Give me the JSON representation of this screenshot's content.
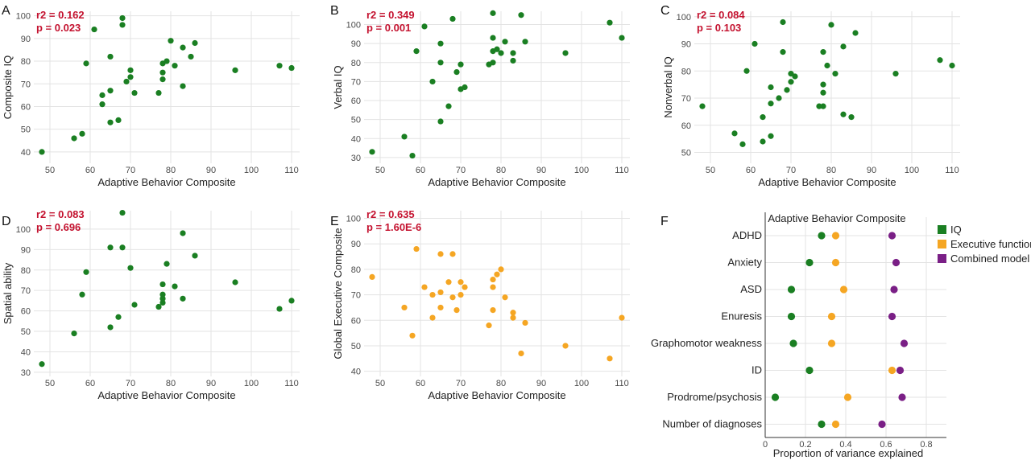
{
  "colors": {
    "green": "#1a7f22",
    "orange": "#f5a623",
    "purple": "#7a1f86",
    "stat_red": "#c4122f"
  },
  "chart_data": [
    {
      "id": "A",
      "type": "scatter",
      "panel_label": "A",
      "xlabel": "Adaptive Behavior Composite",
      "ylabel": "Composite IQ",
      "stat_r2": "r2 = 0.162",
      "stat_p": "p = 0.023",
      "xlim": [
        46,
        112
      ],
      "ylim": [
        35,
        102
      ],
      "xticks": [
        50,
        60,
        70,
        80,
        90,
        100,
        110
      ],
      "yticks": [
        40,
        50,
        60,
        70,
        80,
        90,
        100
      ],
      "color": "#1a7f22",
      "grid": true,
      "points": [
        {
          "x": 48,
          "y": 40
        },
        {
          "x": 56,
          "y": 46
        },
        {
          "x": 58,
          "y": 48
        },
        {
          "x": 59,
          "y": 79
        },
        {
          "x": 61,
          "y": 94
        },
        {
          "x": 63,
          "y": 65
        },
        {
          "x": 63,
          "y": 61
        },
        {
          "x": 65,
          "y": 82
        },
        {
          "x": 65,
          "y": 67
        },
        {
          "x": 65,
          "y": 53
        },
        {
          "x": 67,
          "y": 54
        },
        {
          "x": 68,
          "y": 99
        },
        {
          "x": 68,
          "y": 96
        },
        {
          "x": 69,
          "y": 71
        },
        {
          "x": 70,
          "y": 76
        },
        {
          "x": 70,
          "y": 73
        },
        {
          "x": 71,
          "y": 66
        },
        {
          "x": 77,
          "y": 66
        },
        {
          "x": 78,
          "y": 79
        },
        {
          "x": 78,
          "y": 75
        },
        {
          "x": 78,
          "y": 72
        },
        {
          "x": 79,
          "y": 80
        },
        {
          "x": 80,
          "y": 89
        },
        {
          "x": 81,
          "y": 78
        },
        {
          "x": 83,
          "y": 86
        },
        {
          "x": 83,
          "y": 69
        },
        {
          "x": 85,
          "y": 82
        },
        {
          "x": 86,
          "y": 88
        },
        {
          "x": 96,
          "y": 76
        },
        {
          "x": 107,
          "y": 78
        },
        {
          "x": 110,
          "y": 77
        }
      ]
    },
    {
      "id": "B",
      "type": "scatter",
      "panel_label": "B",
      "xlabel": "Adaptive Behavior Composite",
      "ylabel": "Verbal IQ",
      "stat_r2": "r2 = 0.349",
      "stat_p": "p = 0.001",
      "xlim": [
        46,
        112
      ],
      "ylim": [
        27,
        107
      ],
      "xticks": [
        50,
        60,
        70,
        80,
        90,
        100,
        110
      ],
      "yticks": [
        30,
        40,
        50,
        60,
        70,
        80,
        90,
        100
      ],
      "color": "#1a7f22",
      "grid": true,
      "points": [
        {
          "x": 48,
          "y": 33
        },
        {
          "x": 56,
          "y": 41
        },
        {
          "x": 58,
          "y": 31
        },
        {
          "x": 59,
          "y": 86
        },
        {
          "x": 61,
          "y": 99
        },
        {
          "x": 63,
          "y": 70
        },
        {
          "x": 65,
          "y": 90
        },
        {
          "x": 65,
          "y": 80
        },
        {
          "x": 65,
          "y": 49
        },
        {
          "x": 67,
          "y": 57
        },
        {
          "x": 68,
          "y": 103
        },
        {
          "x": 69,
          "y": 75
        },
        {
          "x": 70,
          "y": 79
        },
        {
          "x": 70,
          "y": 66
        },
        {
          "x": 71,
          "y": 67
        },
        {
          "x": 77,
          "y": 79
        },
        {
          "x": 78,
          "y": 106
        },
        {
          "x": 78,
          "y": 93
        },
        {
          "x": 78,
          "y": 86
        },
        {
          "x": 78,
          "y": 80
        },
        {
          "x": 79,
          "y": 87
        },
        {
          "x": 80,
          "y": 85
        },
        {
          "x": 81,
          "y": 91
        },
        {
          "x": 83,
          "y": 85
        },
        {
          "x": 83,
          "y": 81
        },
        {
          "x": 85,
          "y": 105
        },
        {
          "x": 86,
          "y": 91
        },
        {
          "x": 96,
          "y": 85
        },
        {
          "x": 107,
          "y": 101
        },
        {
          "x": 110,
          "y": 93
        }
      ]
    },
    {
      "id": "C",
      "type": "scatter",
      "panel_label": "C",
      "xlabel": "Adaptive Behavior Composite",
      "ylabel": "Nonverbal IQ",
      "stat_r2": "r2 = 0.084",
      "stat_p": "p = 0.103",
      "xlim": [
        46,
        112
      ],
      "ylim": [
        46,
        102
      ],
      "xticks": [
        50,
        60,
        70,
        80,
        90,
        100,
        110
      ],
      "yticks": [
        50,
        60,
        70,
        80,
        90,
        100
      ],
      "color": "#1a7f22",
      "grid": true,
      "points": [
        {
          "x": 48,
          "y": 67
        },
        {
          "x": 56,
          "y": 57
        },
        {
          "x": 58,
          "y": 53
        },
        {
          "x": 59,
          "y": 80
        },
        {
          "x": 61,
          "y": 90
        },
        {
          "x": 63,
          "y": 63
        },
        {
          "x": 63,
          "y": 54
        },
        {
          "x": 65,
          "y": 74
        },
        {
          "x": 65,
          "y": 68
        },
        {
          "x": 65,
          "y": 56
        },
        {
          "x": 67,
          "y": 70
        },
        {
          "x": 68,
          "y": 98
        },
        {
          "x": 68,
          "y": 87
        },
        {
          "x": 69,
          "y": 73
        },
        {
          "x": 70,
          "y": 79
        },
        {
          "x": 70,
          "y": 76
        },
        {
          "x": 71,
          "y": 78
        },
        {
          "x": 77,
          "y": 67
        },
        {
          "x": 78,
          "y": 87
        },
        {
          "x": 78,
          "y": 75
        },
        {
          "x": 78,
          "y": 72
        },
        {
          "x": 78,
          "y": 67
        },
        {
          "x": 79,
          "y": 82
        },
        {
          "x": 80,
          "y": 97
        },
        {
          "x": 81,
          "y": 79
        },
        {
          "x": 83,
          "y": 89
        },
        {
          "x": 83,
          "y": 64
        },
        {
          "x": 85,
          "y": 63
        },
        {
          "x": 86,
          "y": 94
        },
        {
          "x": 96,
          "y": 79
        },
        {
          "x": 107,
          "y": 84
        },
        {
          "x": 110,
          "y": 82
        }
      ]
    },
    {
      "id": "D",
      "type": "scatter",
      "panel_label": "D",
      "xlabel": "Adaptive Behavior Composite",
      "ylabel": "Spatial ability",
      "stat_r2": "r2 = 0.083",
      "stat_p": "p = 0.696",
      "xlim": [
        46,
        112
      ],
      "ylim": [
        28,
        109
      ],
      "xticks": [
        50,
        60,
        70,
        80,
        90,
        100,
        110
      ],
      "yticks": [
        30,
        40,
        50,
        60,
        70,
        80,
        90,
        100
      ],
      "color": "#1a7f22",
      "grid": true,
      "points": [
        {
          "x": 48,
          "y": 34
        },
        {
          "x": 56,
          "y": 49
        },
        {
          "x": 58,
          "y": 68
        },
        {
          "x": 59,
          "y": 79
        },
        {
          "x": 65,
          "y": 91
        },
        {
          "x": 65,
          "y": 52
        },
        {
          "x": 67,
          "y": 57
        },
        {
          "x": 68,
          "y": 108
        },
        {
          "x": 68,
          "y": 91
        },
        {
          "x": 70,
          "y": 81
        },
        {
          "x": 71,
          "y": 63
        },
        {
          "x": 77,
          "y": 62
        },
        {
          "x": 78,
          "y": 73
        },
        {
          "x": 78,
          "y": 68
        },
        {
          "x": 78,
          "y": 66
        },
        {
          "x": 78,
          "y": 64
        },
        {
          "x": 79,
          "y": 83
        },
        {
          "x": 81,
          "y": 72
        },
        {
          "x": 83,
          "y": 98
        },
        {
          "x": 83,
          "y": 66
        },
        {
          "x": 86,
          "y": 87
        },
        {
          "x": 96,
          "y": 74
        },
        {
          "x": 107,
          "y": 61
        },
        {
          "x": 110,
          "y": 65
        }
      ]
    },
    {
      "id": "E",
      "type": "scatter",
      "panel_label": "E",
      "xlabel": "Adaptive Behavior Composite",
      "ylabel": "Global Executive Composite",
      "stat_r2": "r2 = 0.635",
      "stat_p": "p = 1.60E-6",
      "xlim": [
        46,
        112
      ],
      "ylim": [
        38,
        103
      ],
      "xticks": [
        50,
        60,
        70,
        80,
        90,
        100,
        110
      ],
      "yticks": [
        40,
        50,
        60,
        70,
        80,
        90,
        100
      ],
      "color": "#f5a623",
      "grid": true,
      "points": [
        {
          "x": 48,
          "y": 77
        },
        {
          "x": 56,
          "y": 65
        },
        {
          "x": 58,
          "y": 54
        },
        {
          "x": 59,
          "y": 88
        },
        {
          "x": 61,
          "y": 73
        },
        {
          "x": 63,
          "y": 70
        },
        {
          "x": 63,
          "y": 61
        },
        {
          "x": 65,
          "y": 86
        },
        {
          "x": 65,
          "y": 71
        },
        {
          "x": 65,
          "y": 65
        },
        {
          "x": 67,
          "y": 75
        },
        {
          "x": 68,
          "y": 86
        },
        {
          "x": 68,
          "y": 69
        },
        {
          "x": 69,
          "y": 64
        },
        {
          "x": 70,
          "y": 75
        },
        {
          "x": 70,
          "y": 70
        },
        {
          "x": 71,
          "y": 73
        },
        {
          "x": 77,
          "y": 58
        },
        {
          "x": 78,
          "y": 76
        },
        {
          "x": 78,
          "y": 73
        },
        {
          "x": 78,
          "y": 64
        },
        {
          "x": 79,
          "y": 78
        },
        {
          "x": 80,
          "y": 80
        },
        {
          "x": 81,
          "y": 69
        },
        {
          "x": 83,
          "y": 63
        },
        {
          "x": 83,
          "y": 61
        },
        {
          "x": 85,
          "y": 47
        },
        {
          "x": 86,
          "y": 59
        },
        {
          "x": 96,
          "y": 50
        },
        {
          "x": 107,
          "y": 45
        },
        {
          "x": 110,
          "y": 61
        }
      ]
    },
    {
      "id": "F",
      "type": "dot",
      "panel_label": "F",
      "title": "Adaptive Behavior Composite",
      "xlabel": "Proportion of variance explained",
      "xlim": [
        0,
        0.9
      ],
      "xticks": [
        0,
        0.2,
        0.4,
        0.6,
        0.8
      ],
      "xtick_labels": [
        "0",
        "0.2",
        "0.4",
        "0.6",
        "0.8"
      ],
      "grid": true,
      "legend_position": "top-right",
      "categories": [
        "ADHD",
        "Anxiety",
        "ASD",
        "Enuresis",
        "Graphomotor weakness",
        "ID",
        "Prodrome/psychosis",
        "Number of diagnoses"
      ],
      "series": [
        {
          "name": "IQ",
          "color": "#1a7f22",
          "values": [
            0.28,
            0.22,
            0.13,
            0.13,
            0.14,
            0.22,
            0.05,
            0.28
          ]
        },
        {
          "name": "Executive function",
          "color": "#f5a623",
          "values": [
            0.35,
            0.35,
            0.39,
            0.33,
            0.33,
            0.63,
            0.41,
            0.35
          ]
        },
        {
          "name": "Combined model",
          "color": "#7a1f86",
          "values": [
            0.63,
            0.65,
            0.64,
            0.63,
            0.69,
            0.67,
            0.68,
            0.58
          ]
        }
      ]
    }
  ]
}
